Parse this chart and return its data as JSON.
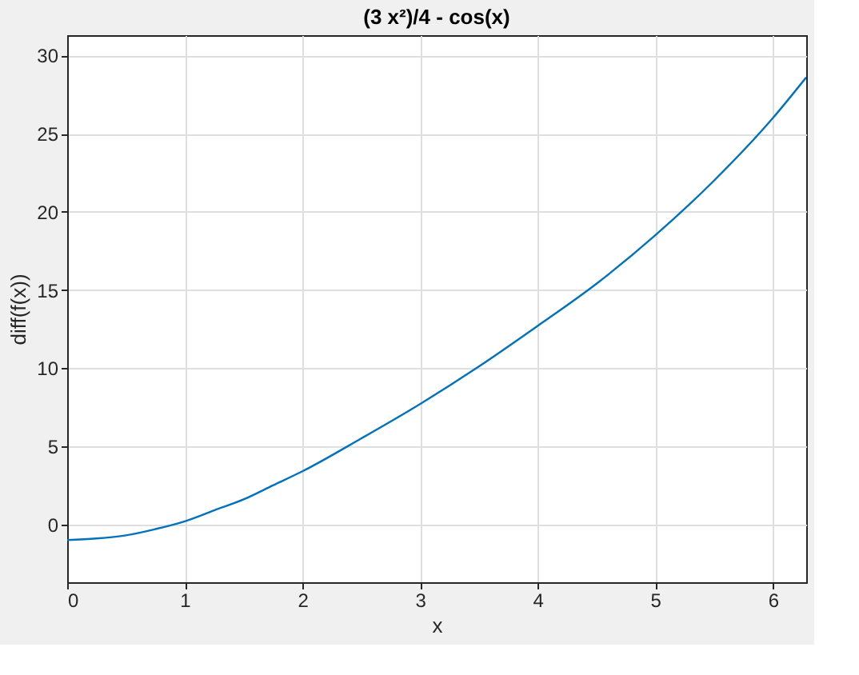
{
  "chart_data": {
    "type": "line",
    "title": "(3 x²)/4 - cos(x)",
    "xlabel": "x",
    "ylabel": "diff(f(x))",
    "x": [
      0,
      0.25,
      0.5,
      0.75,
      1,
      1.25,
      1.5,
      1.75,
      2,
      2.5,
      3,
      3.5,
      4,
      4.5,
      5,
      5.5,
      6,
      6.2832
    ],
    "series": [
      {
        "color": "#0072bd",
        "values": [
          -1,
          -0.9,
          -0.7,
          -0.3,
          0.2,
          0.9,
          1.6,
          2.5,
          3.4,
          5.5,
          7.7,
          10.1,
          12.7,
          15.4,
          18.5,
          22,
          26,
          28.6
        ]
      }
    ],
    "xlim": [
      0,
      6.2832
    ],
    "ylim": [
      -3.7,
      31.3
    ],
    "xticks": [
      0,
      1,
      2,
      3,
      4,
      5,
      6
    ],
    "yticks": [
      0,
      5,
      10,
      15,
      20,
      25,
      30
    ],
    "grid": true,
    "marker": "none",
    "line_style": "solid"
  }
}
